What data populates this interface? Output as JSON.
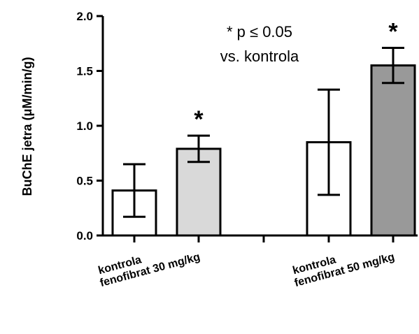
{
  "chart_data": {
    "type": "bar",
    "ylabel": "BuChE jetra (μM/min/g)",
    "ylim": [
      0,
      2.0
    ],
    "yticks": [
      {
        "value": 0.0,
        "label": "0.0"
      },
      {
        "value": 0.5,
        "label": "0.5"
      },
      {
        "value": 1.0,
        "label": "1.0"
      },
      {
        "value": 1.5,
        "label": "1.5"
      },
      {
        "value": 2.0,
        "label": "2.0"
      }
    ],
    "categories": [
      "kontrola",
      "fenofibrat 30 mg/kg",
      "kontrola",
      "fenofibrat 50 mg/kg"
    ],
    "values": [
      0.41,
      0.79,
      0.85,
      1.55
    ],
    "error_low": [
      0.17,
      0.67,
      0.37,
      1.39
    ],
    "error_high": [
      0.65,
      0.91,
      1.33,
      1.71
    ],
    "significance": [
      "",
      "*",
      "",
      "*"
    ],
    "bar_colors": [
      "#ffffff",
      "#d9d9d9",
      "#ffffff",
      "#999999"
    ],
    "annotation": {
      "line1": "* p ≤ 0.05",
      "line2": "vs. kontrola"
    }
  }
}
